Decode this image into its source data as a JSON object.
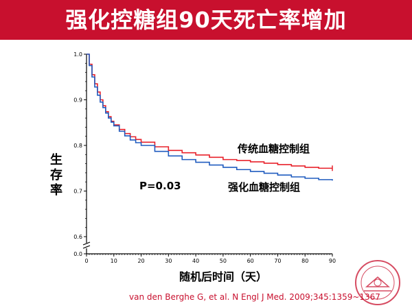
{
  "slide": {
    "title": "强化控糖组90天死亡率增加",
    "citation": "van den Berghe G, et al. N Engl J Med. 2009;345:1359~1367",
    "colors": {
      "title_bar": "#c8102e",
      "conventional": "#e8202a",
      "intensive": "#1f5bbf",
      "citation": "#c8102e"
    }
  },
  "chart_data": {
    "type": "line",
    "title": "",
    "xlabel": "随机后时间（天）",
    "ylabel": "生存率",
    "xlim": [
      0,
      90
    ],
    "ylim": [
      0.6,
      1.0
    ],
    "x_ticks": [
      0,
      10,
      20,
      30,
      40,
      50,
      60,
      70,
      80,
      90
    ],
    "y_ticks": [
      "0.0",
      "0.6",
      "0.7",
      "0.8",
      "0.9",
      "1.0"
    ],
    "axis_break": true,
    "step": true,
    "annotation": "P=0.03",
    "series": [
      {
        "name": "传统血糖控制组",
        "color": "#e8202a",
        "x": [
          0,
          1,
          2,
          3,
          4,
          5,
          6,
          7,
          8,
          9,
          10,
          12,
          14,
          16,
          18,
          20,
          25,
          30,
          35,
          40,
          45,
          50,
          55,
          60,
          65,
          70,
          75,
          80,
          85,
          90
        ],
        "y": [
          1.0,
          0.978,
          0.955,
          0.935,
          0.917,
          0.9,
          0.887,
          0.874,
          0.863,
          0.853,
          0.845,
          0.835,
          0.826,
          0.819,
          0.813,
          0.807,
          0.797,
          0.789,
          0.784,
          0.779,
          0.774,
          0.769,
          0.767,
          0.764,
          0.761,
          0.758,
          0.755,
          0.752,
          0.75,
          0.75
        ]
      },
      {
        "name": "强化血糖控制组",
        "color": "#1f5bbf",
        "x": [
          0,
          1,
          2,
          3,
          4,
          5,
          6,
          7,
          8,
          9,
          10,
          12,
          14,
          16,
          18,
          20,
          25,
          30,
          35,
          40,
          45,
          50,
          55,
          60,
          65,
          70,
          75,
          80,
          85,
          90
        ],
        "y": [
          1.0,
          0.975,
          0.95,
          0.928,
          0.91,
          0.895,
          0.883,
          0.871,
          0.86,
          0.851,
          0.843,
          0.831,
          0.821,
          0.812,
          0.806,
          0.8,
          0.787,
          0.777,
          0.769,
          0.763,
          0.757,
          0.752,
          0.747,
          0.743,
          0.739,
          0.735,
          0.731,
          0.728,
          0.725,
          0.723
        ]
      }
    ]
  }
}
